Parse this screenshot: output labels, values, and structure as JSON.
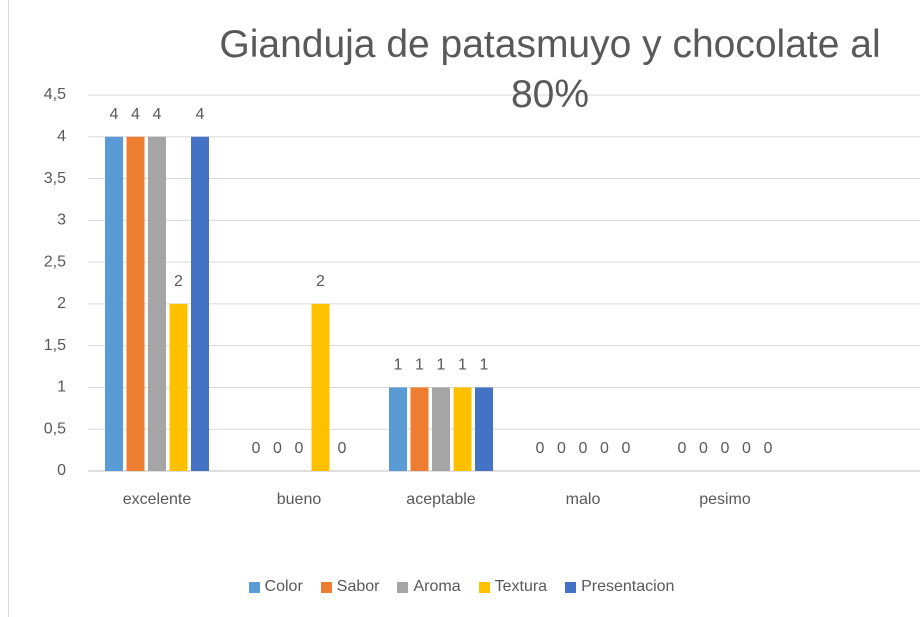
{
  "chart_data": {
    "type": "bar",
    "title": "Gianduja de patasmuyo y chocolate al 80%",
    "categories": [
      "excelente",
      "bueno",
      "aceptable",
      "malo",
      "pesimo"
    ],
    "series": [
      {
        "name": "Color",
        "color": "#5b9bd5",
        "values": [
          4,
          0,
          1,
          0,
          0
        ]
      },
      {
        "name": "Sabor",
        "color": "#ed7d31",
        "values": [
          4,
          0,
          1,
          0,
          0
        ]
      },
      {
        "name": "Aroma",
        "color": "#a5a5a5",
        "values": [
          4,
          0,
          1,
          0,
          0
        ]
      },
      {
        "name": "Textura",
        "color": "#ffc000",
        "values": [
          2,
          2,
          1,
          0,
          0
        ]
      },
      {
        "name": "Presentacion",
        "color": "#4472c4",
        "values": [
          4,
          0,
          1,
          0,
          0
        ]
      }
    ],
    "ylim": [
      0,
      4.5
    ],
    "yticks": [
      0,
      {
        "value": 0.5,
        "label": "0,5"
      },
      1,
      {
        "value": 1.5,
        "label": "1,5"
      },
      2,
      {
        "value": 2.5,
        "label": "2,5"
      },
      3,
      {
        "value": 3.5,
        "label": "3,5"
      },
      4,
      {
        "value": 4.5,
        "label": "4,5"
      }
    ],
    "grid": true,
    "legend": "bottom"
  }
}
